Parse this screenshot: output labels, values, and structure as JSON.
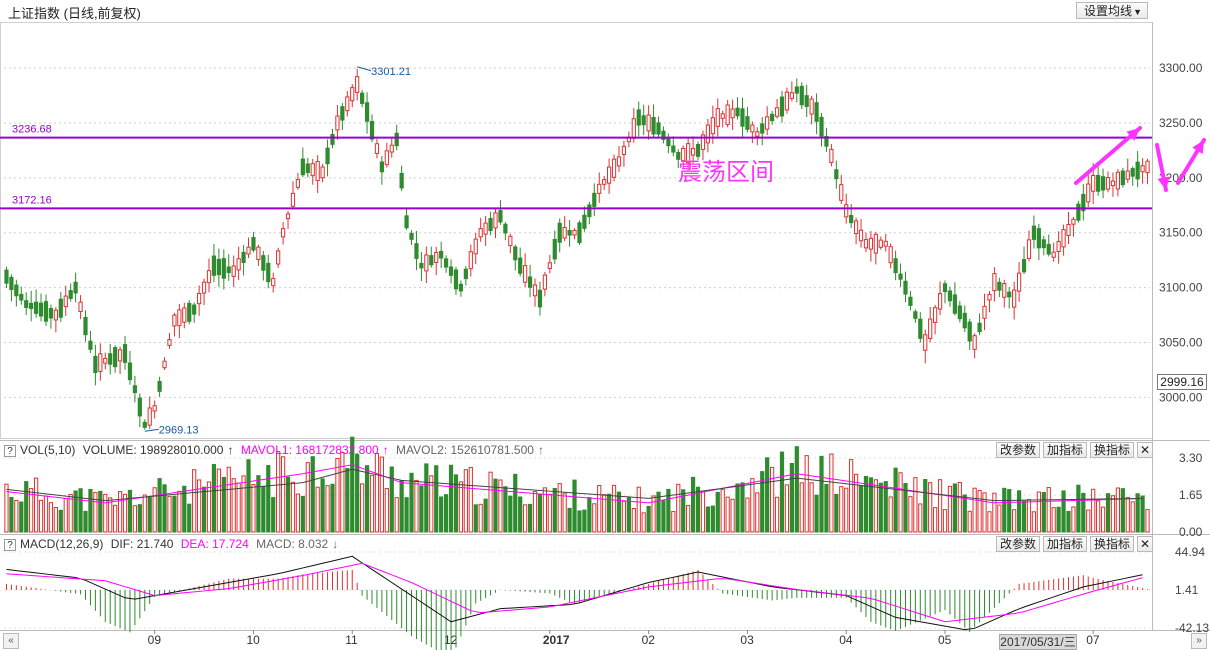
{
  "header": {
    "title": "上证指数 (日线,前复权)",
    "ma_button": "设置均线"
  },
  "annotation": {
    "text": "震荡区间",
    "color": "#ff33ff"
  },
  "price_tag": "2999.16",
  "volume_header": {
    "q": "?",
    "name": "VOL(5,10)",
    "volume": "VOLUME: 198928010.000",
    "mavol1": "MAVOL1: 168172832.800",
    "mavol2": "MAVOL2: 152610781.500",
    "up": "↑",
    "down": "↓"
  },
  "macd_header": {
    "q": "?",
    "name": "MACD(12,26,9)",
    "dif": "DIF: 21.740",
    "dea": "DEA: 17.724",
    "macd": "MACD: 8.032",
    "up": "↑",
    "down": "↓"
  },
  "panel_buttons": {
    "params": "改参数",
    "add": "加指标",
    "switch": "换指标",
    "close": "✕"
  },
  "date_tip": "2017/05/31/三",
  "scroll": {
    "left": "«",
    "right": "»"
  },
  "colors": {
    "up": "#e03030",
    "down": "#2e8b2e",
    "hline": "#9900cc",
    "ma1": "#ff00ff",
    "ma2": "#444444",
    "arrow": "#ff33ff"
  },
  "chart_data": {
    "type": "candlestick",
    "title": "上证指数 (日线,前复权)",
    "y_ticks": [
      3300,
      3250,
      3200,
      3150,
      3100,
      3050,
      3000
    ],
    "y_tick_labels": [
      "3300.00",
      "3250.00",
      "3200.00",
      "3150.00",
      "3100.00",
      "3050.00",
      "3000.00"
    ],
    "ylim": [
      2963,
      3342
    ],
    "x_labels": [
      "09",
      "10",
      "11",
      "12",
      "2017",
      "02",
      "03",
      "04",
      "05",
      "07"
    ],
    "x_label_positions": [
      30,
      50,
      70,
      90,
      110,
      130,
      150,
      170,
      190,
      220
    ],
    "horizontal_lines": [
      {
        "label": "3236.68",
        "value": 3236.68
      },
      {
        "label": "3172.16",
        "value": 3172.16
      }
    ],
    "high_label": {
      "text": "3301.21",
      "value": 3301.21,
      "index": 71
    },
    "low_label": {
      "text": "2969.13",
      "value": 2969.13,
      "index": 28
    },
    "num_bars": 232,
    "series": [
      {
        "name": "上证指数",
        "control_points": [
          [
            0,
            3110
          ],
          [
            4,
            3085
          ],
          [
            10,
            3075
          ],
          [
            14,
            3100
          ],
          [
            18,
            3030
          ],
          [
            24,
            3040
          ],
          [
            28,
            2975
          ],
          [
            30,
            2990
          ],
          [
            34,
            3070
          ],
          [
            38,
            3080
          ],
          [
            42,
            3120
          ],
          [
            46,
            3115
          ],
          [
            50,
            3140
          ],
          [
            54,
            3105
          ],
          [
            56,
            3150
          ],
          [
            60,
            3210
          ],
          [
            64,
            3205
          ],
          [
            67,
            3250
          ],
          [
            71,
            3285
          ],
          [
            73,
            3260
          ],
          [
            76,
            3210
          ],
          [
            79,
            3235
          ],
          [
            81,
            3160
          ],
          [
            84,
            3120
          ],
          [
            88,
            3130
          ],
          [
            92,
            3100
          ],
          [
            96,
            3150
          ],
          [
            100,
            3165
          ],
          [
            104,
            3120
          ],
          [
            108,
            3090
          ],
          [
            112,
            3150
          ],
          [
            116,
            3150
          ],
          [
            120,
            3190
          ],
          [
            124,
            3215
          ],
          [
            128,
            3255
          ],
          [
            132,
            3245
          ],
          [
            136,
            3220
          ],
          [
            140,
            3225
          ],
          [
            144,
            3255
          ],
          [
            148,
            3260
          ],
          [
            152,
            3240
          ],
          [
            156,
            3260
          ],
          [
            160,
            3280
          ],
          [
            164,
            3260
          ],
          [
            167,
            3220
          ],
          [
            170,
            3170
          ],
          [
            174,
            3140
          ],
          [
            178,
            3140
          ],
          [
            182,
            3100
          ],
          [
            186,
            3050
          ],
          [
            190,
            3100
          ],
          [
            194,
            3070
          ],
          [
            196,
            3050
          ],
          [
            200,
            3105
          ],
          [
            204,
            3090
          ],
          [
            208,
            3150
          ],
          [
            212,
            3130
          ],
          [
            216,
            3160
          ],
          [
            220,
            3195
          ],
          [
            224,
            3195
          ],
          [
            228,
            3205
          ],
          [
            231,
            3210
          ]
        ]
      }
    ],
    "volume_panel": {
      "y_tick_labels": [
        "3.30",
        "1.65",
        "0.00"
      ],
      "ylim": [
        0,
        3.3
      ],
      "series": [
        {
          "name": "MAVOL1",
          "control_points": [
            [
              0,
              1.8
            ],
            [
              20,
              1.3
            ],
            [
              60,
              2.6
            ],
            [
              70,
              3.0
            ],
            [
              80,
              2.2
            ],
            [
              130,
              1.3
            ],
            [
              160,
              2.6
            ],
            [
              200,
              1.3
            ],
            [
              231,
              1.5
            ]
          ]
        },
        {
          "name": "MAVOL2",
          "control_points": [
            [
              0,
              1.9
            ],
            [
              20,
              1.4
            ],
            [
              60,
              2.2
            ],
            [
              70,
              2.8
            ],
            [
              80,
              2.3
            ],
            [
              130,
              1.5
            ],
            [
              160,
              2.4
            ],
            [
              200,
              1.4
            ],
            [
              231,
              1.5
            ]
          ]
        }
      ]
    },
    "macd_panel": {
      "y_tick_labels": [
        "44.94",
        "1.41",
        "-42.13"
      ],
      "ylim": [
        -42.13,
        44.94
      ],
      "series": [
        {
          "name": "DIF",
          "control_points": [
            [
              0,
              25
            ],
            [
              15,
              15
            ],
            [
              25,
              -10
            ],
            [
              40,
              5
            ],
            [
              55,
              20
            ],
            [
              70,
              40
            ],
            [
              78,
              10
            ],
            [
              90,
              -35
            ],
            [
              100,
              -20
            ],
            [
              115,
              -15
            ],
            [
              130,
              10
            ],
            [
              140,
              22
            ],
            [
              155,
              5
            ],
            [
              170,
              -5
            ],
            [
              180,
              -30
            ],
            [
              195,
              -45
            ],
            [
              205,
              -20
            ],
            [
              218,
              5
            ],
            [
              231,
              20
            ]
          ]
        },
        {
          "name": "DEA",
          "control_points": [
            [
              0,
              20
            ],
            [
              20,
              12
            ],
            [
              30,
              -5
            ],
            [
              45,
              3
            ],
            [
              60,
              18
            ],
            [
              72,
              32
            ],
            [
              82,
              10
            ],
            [
              95,
              -25
            ],
            [
              110,
              -18
            ],
            [
              130,
              5
            ],
            [
              145,
              15
            ],
            [
              160,
              2
            ],
            [
              175,
              -8
            ],
            [
              190,
              -35
            ],
            [
              205,
              -25
            ],
            [
              220,
              0
            ],
            [
              231,
              17
            ]
          ]
        }
      ]
    }
  }
}
